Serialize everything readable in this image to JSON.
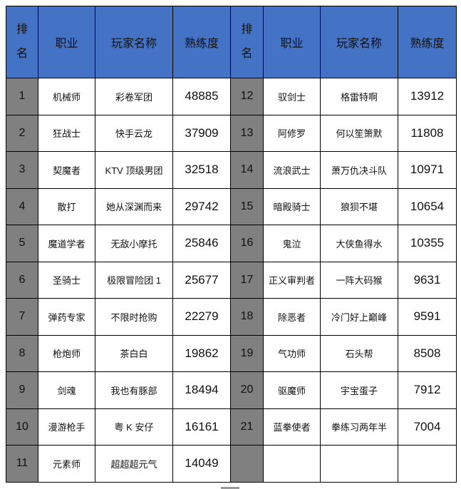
{
  "headers": {
    "rank": "排名",
    "rank_line1": "排",
    "rank_line2": "名",
    "job": "职业",
    "player": "玩家名称",
    "proficiency": "熟练度"
  },
  "left_rows": [
    {
      "rank": "1",
      "job": "机械师",
      "player": "彩卷军团",
      "proficiency": "48885"
    },
    {
      "rank": "2",
      "job": "狂战士",
      "player": "快手云龙",
      "proficiency": "37909"
    },
    {
      "rank": "3",
      "job": "契魔者",
      "player": "KTV 顶级男团",
      "proficiency": "32518"
    },
    {
      "rank": "4",
      "job": "散打",
      "player": "她从深渊而来",
      "proficiency": "29742"
    },
    {
      "rank": "5",
      "job": "魔道学者",
      "player": "无敌小摩托",
      "proficiency": "25846"
    },
    {
      "rank": "6",
      "job": "圣骑士",
      "player": "极限冒险团 1",
      "proficiency": "25677"
    },
    {
      "rank": "7",
      "job": "弹药专家",
      "player": "不限时抢购",
      "proficiency": "22279"
    },
    {
      "rank": "8",
      "job": "枪炮师",
      "player": "茶白白",
      "proficiency": "19862"
    },
    {
      "rank": "9",
      "job": "剑魂",
      "player": "我也有豚部",
      "proficiency": "18494"
    },
    {
      "rank": "10",
      "job": "漫游枪手",
      "player": "粤 K 安仔",
      "proficiency": "16161"
    },
    {
      "rank": "11",
      "job": "元素师",
      "player": "超超超元气",
      "proficiency": "14049"
    }
  ],
  "right_rows": [
    {
      "rank": "12",
      "job": "驭剑士",
      "player": "格雷特啊",
      "proficiency": "13912"
    },
    {
      "rank": "13",
      "job": "阿修罗",
      "player": "何以笙箫默",
      "proficiency": "11808"
    },
    {
      "rank": "14",
      "job": "流浪武士",
      "player": "萧万仇决斗队",
      "proficiency": "10971"
    },
    {
      "rank": "15",
      "job": "暗殿骑士",
      "player": "狼狈不堪",
      "proficiency": "10654"
    },
    {
      "rank": "16",
      "job": "鬼泣",
      "player": "大侠鱼得水",
      "proficiency": "10355"
    },
    {
      "rank": "17",
      "job": "正义审判者",
      "player": "一阵大码猴",
      "proficiency": "9631"
    },
    {
      "rank": "18",
      "job": "除恶者",
      "player": "冷门好上巅峰",
      "proficiency": "9591"
    },
    {
      "rank": "19",
      "job": "气功师",
      "player": "石头帮",
      "proficiency": "8508"
    },
    {
      "rank": "20",
      "job": "驱魔师",
      "player": "宇宝蛋子",
      "proficiency": "7912"
    },
    {
      "rank": "21",
      "job": "蓝拳使者",
      "player": "拳练习两年半",
      "proficiency": "7004"
    },
    {
      "rank": "",
      "job": "",
      "player": "",
      "proficiency": ""
    }
  ],
  "colors": {
    "header_bg": "#4472c4",
    "rank_bg": "#808080"
  }
}
